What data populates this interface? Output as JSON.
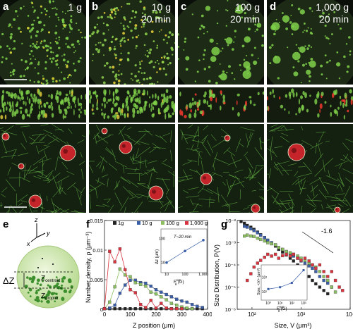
{
  "panels_top": [
    {
      "letter": "a",
      "g_label": "1 g",
      "time_label": ""
    },
    {
      "letter": "b",
      "g_label": "10 g",
      "time_label": "20 min"
    },
    {
      "letter": "c",
      "g_label": "100 g",
      "time_label": "20 min"
    },
    {
      "letter": "d",
      "g_label": "1,000 g",
      "time_label": "20 min"
    }
  ],
  "panel_e": {
    "letter": "e",
    "axis_z": "z",
    "axis_x": "x",
    "axis_y": "y",
    "delta_z": "ΔZ",
    "z_centroid": "Z",
    "z_centroid_sub": "centroid",
    "z_droplet": "Z",
    "z_droplet_sub": "droplet"
  },
  "panel_f": {
    "letter": "f",
    "ylabel": "Number density, ρ (μm⁻³)",
    "xlabel": "Z position (μm)",
    "legend": [
      "1g",
      "10 g",
      "100 g",
      "1,000 g"
    ],
    "colors": [
      "#222222",
      "#3a5fa8",
      "#8cc061",
      "#d9343f"
    ],
    "inset": {
      "label": "T~20 min",
      "ylabel": "Δz (μm)",
      "xlabel": "F",
      "xlabel_sup": "ext",
      "xlabel_sub": "g",
      "xlabel_unit": " (G)"
    }
  },
  "panel_g": {
    "letter": "g",
    "ylabel": "Size Distribution, P(V)",
    "xlabel": "Size, V (μm³)",
    "slope_label": "-1.6",
    "inset": {
      "ylabel": "Size, <V> (μm³)",
      "xlabel": "F",
      "xlabel_sup": "ext",
      "xlabel_sub": "g",
      "xlabel_unit": " (G)"
    }
  },
  "chart_data": [
    {
      "type": "scatter",
      "title": "",
      "xlabel": "Z position (μm)",
      "ylabel": "Number density, ρ (μm⁻³)",
      "xlim": [
        0,
        400
      ],
      "ylim": [
        0,
        0.015
      ],
      "xticks": [
        "0",
        "100",
        "200",
        "300",
        "400"
      ],
      "yticks": [
        "0",
        "0.005",
        "0.01",
        "0.015"
      ],
      "series": [
        {
          "name": "1g",
          "x": [
            0,
            20,
            40,
            60,
            80,
            100,
            120,
            140,
            160,
            180,
            200,
            220,
            240,
            260,
            280,
            300,
            320,
            340,
            360,
            380
          ],
          "y": [
            0.0001,
            0.0001,
            0.0001,
            0.0001,
            0.0001,
            0.0001,
            0.0001,
            0.0001,
            0.0001,
            0.0001,
            0.0001,
            0.0001,
            0.0001,
            0.0001,
            0.0001,
            0.0001,
            0.0001,
            0.0001,
            0.0001,
            0.0001
          ]
        },
        {
          "name": "10 g",
          "x": [
            20,
            40,
            60,
            80,
            100,
            120,
            140,
            160,
            180,
            200,
            220,
            240,
            260,
            280,
            300,
            320,
            340,
            360,
            380
          ],
          "y": [
            0.0002,
            0.0007,
            0.0027,
            0.0041,
            0.0049,
            0.0049,
            0.0045,
            0.0044,
            0.0039,
            0.0033,
            0.0029,
            0.0025,
            0.0021,
            0.0017,
            0.0014,
            0.0012,
            0.0008,
            0.0005,
            0.0003
          ]
        },
        {
          "name": "100 g",
          "x": [
            0,
            20,
            40,
            60,
            80,
            100,
            120,
            140,
            160,
            180,
            200,
            220,
            240,
            260,
            280,
            300,
            320,
            340
          ],
          "y": [
            0.0001,
            0.0012,
            0.0038,
            0.0068,
            0.0058,
            0.0055,
            0.0045,
            0.0042,
            0.0039,
            0.0029,
            0.0026,
            0.0021,
            0.0016,
            0.001,
            0.0007,
            0.0004,
            0.0002,
            0.0001
          ]
        },
        {
          "name": "1,000 g",
          "x": [
            0,
            20,
            40,
            60,
            80,
            100,
            120,
            140,
            160,
            180,
            200,
            220,
            240,
            260,
            280,
            300
          ],
          "y": [
            0.0001,
            0.0098,
            0.008,
            0.0102,
            0.0067,
            0.0033,
            0.0028,
            0.0008,
            0.0003,
            0.0015,
            0.0002,
            0.001,
            0.0002,
            0.0001,
            0.0001,
            0.0001
          ]
        }
      ],
      "inset": {
        "type": "line",
        "title": "T~20 min",
        "xlabel": "F^ext_g (G)",
        "ylabel": "Δz (μm)",
        "x": [
          10,
          100,
          1000
        ],
        "y": [
          10,
          30,
          85
        ],
        "xscale": "log",
        "yscale": "log",
        "xticks": [
          "10",
          "100",
          "1,000"
        ],
        "yticks": [
          "10",
          "100"
        ]
      }
    },
    {
      "type": "scatter",
      "title": "",
      "xlabel": "Size, V (μm³)",
      "ylabel": "Size Distribution, P(V)",
      "xscale": "log",
      "yscale": "log",
      "xlim": [
        50,
        10000
      ],
      "ylim": [
        1e-06,
        0.01
      ],
      "xticks": [
        "10²",
        "10³",
        "10⁴"
      ],
      "yticks": [
        "10⁻⁶",
        "10⁻⁵",
        "10⁻⁴",
        "10⁻³",
        "10⁻²"
      ],
      "series": [
        {
          "name": "1g",
          "x": [
            60,
            70,
            80,
            95,
            110,
            130,
            150,
            180,
            210,
            250,
            300,
            350,
            420,
            500,
            600,
            700,
            850,
            1000,
            1200,
            1450,
            1700,
            2000,
            2400,
            2900,
            3500
          ],
          "y": [
            0.009,
            0.0075,
            0.006,
            0.005,
            0.004,
            0.003,
            0.0023,
            0.0017,
            0.0012,
            0.0009,
            0.0007,
            0.0005,
            0.00038,
            0.00028,
            0.0002,
            0.00015,
            0.0001,
            7e-05,
            5e-05,
            3e-05,
            2e-05,
            1.4e-05,
            1e-05,
            7e-06,
            5e-06
          ]
        },
        {
          "name": "10 g",
          "x": [
            70,
            80,
            95,
            110,
            130,
            150,
            180,
            210,
            250,
            300,
            350,
            420,
            500,
            600,
            700,
            850,
            1000,
            1200,
            1450,
            1700,
            2000,
            2400,
            2900,
            3500,
            4200
          ],
          "y": [
            0.0055,
            0.005,
            0.0042,
            0.0035,
            0.0028,
            0.0022,
            0.0017,
            0.0013,
            0.001,
            0.0008,
            0.0006,
            0.0005,
            0.0004,
            0.0003,
            0.00025,
            0.0002,
            0.00015,
            0.00012,
            9e-05,
            7e-05,
            5e-05,
            3e-05,
            2e-05,
            1.5e-05,
            1e-05
          ]
        },
        {
          "name": "100 g",
          "x": [
            70,
            80,
            95,
            110,
            130,
            150,
            180,
            210,
            250,
            300,
            350,
            420,
            500,
            600,
            700,
            850,
            1000,
            1200,
            1450,
            1700,
            2000,
            2400,
            2900,
            3500,
            4200,
            5000
          ],
          "y": [
            0.002,
            0.0022,
            0.002,
            0.0019,
            0.0016,
            0.0014,
            0.0012,
            0.001,
            0.0009,
            0.0008,
            0.0006,
            0.0005,
            0.0004,
            0.00035,
            0.0003,
            0.00025,
            0.0002,
            0.00016,
            0.00012,
            0.0001,
            8e-05,
            5e-05,
            3e-05,
            2e-05,
            1e-05,
            6e-06
          ]
        },
        {
          "name": "1,000 g",
          "x": [
            80,
            95,
            110,
            130,
            150,
            180,
            210,
            250,
            300,
            350,
            420,
            500,
            600,
            700,
            850,
            1000,
            1200,
            1450,
            1700,
            2000,
            2400,
            2900,
            3500,
            4200,
            5000,
            6000,
            7000
          ],
          "y": [
            2e-05,
            4e-05,
            8e-05,
            0.00012,
            0.00016,
            0.00022,
            0.0003,
            0.00025,
            0.0003,
            0.0002,
            0.00026,
            0.0003,
            0.00025,
            0.0003,
            0.0002,
            0.00016,
            0.0002,
            0.00015,
            0.0001,
            7e-05,
            0.0001,
            5e-05,
            3e-05,
            5e-05,
            2e-05,
            1e-05,
            7e-06
          ]
        }
      ],
      "inset": {
        "type": "line",
        "xlabel": "F^ext_g (G)",
        "ylabel": "Size, <V> (μm³)",
        "x": [
          1,
          10,
          100,
          1000
        ],
        "y": [
          150,
          200,
          400,
          3000
        ],
        "xscale": "log",
        "yscale": "log",
        "xticks": [
          "10⁰",
          "10¹",
          "10²",
          "10³"
        ],
        "yticks": [
          "10²",
          "10³"
        ]
      }
    }
  ]
}
